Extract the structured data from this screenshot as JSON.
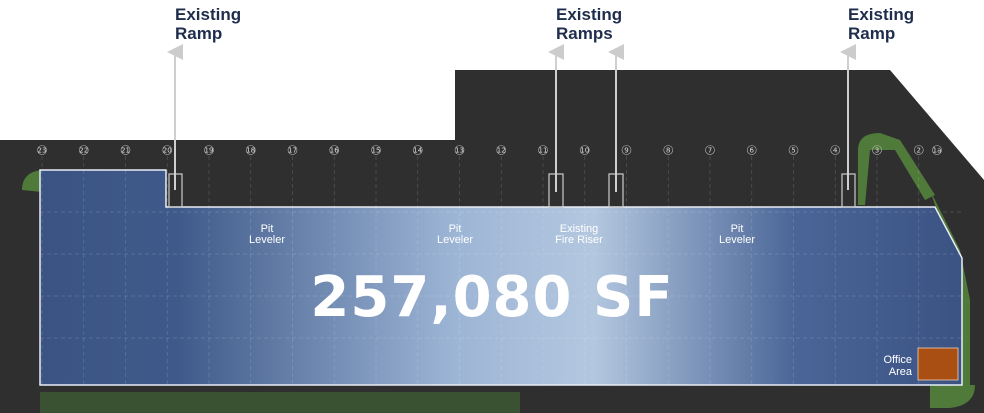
{
  "callouts": [
    {
      "line1": "Existing",
      "line2": "Ramp"
    },
    {
      "line1": "Existing",
      "line2": "Ramps"
    },
    {
      "line1": "Existing",
      "line2": "Ramp"
    }
  ],
  "columns": [
    "23",
    "22",
    "21",
    "20",
    "19",
    "18",
    "17",
    "16",
    "15",
    "14",
    "13",
    "12",
    "11",
    "10",
    "9",
    "8",
    "7",
    "6",
    "5",
    "4",
    "3",
    "2",
    "1a"
  ],
  "labels": {
    "pit_leveler_1": {
      "line1": "Pit",
      "line2": "Leveler"
    },
    "pit_leveler_2": {
      "line1": "Pit",
      "line2": "Leveler"
    },
    "fire_riser": {
      "line1": "Existing",
      "line2": "Fire Riser"
    },
    "pit_leveler_3": {
      "line1": "Pit",
      "line2": "Leveler"
    },
    "office": {
      "line1": "Office",
      "line2": "Area"
    }
  },
  "area": "257,080 SF",
  "colors": {
    "site": "#2f2f2f",
    "building_dark": "#3b5383",
    "building_light": "#b3c7df",
    "office": "#a94f14",
    "landscape": "#4f7a3a",
    "callout_text": "#1f2d4d"
  }
}
